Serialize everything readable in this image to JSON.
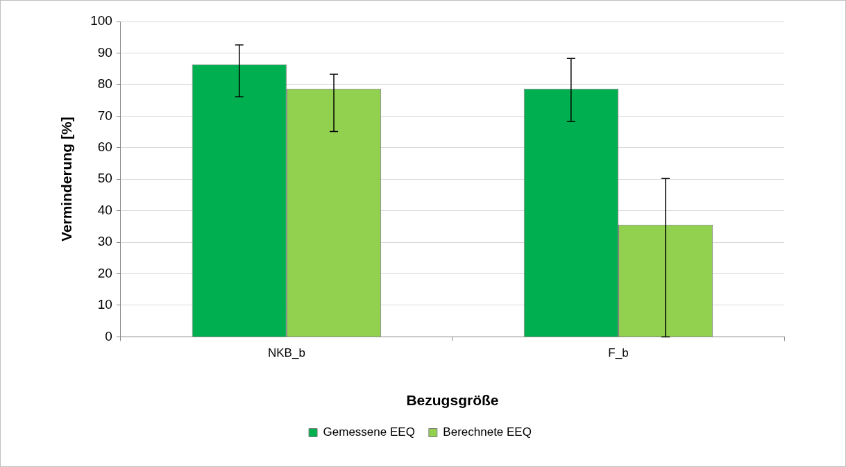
{
  "chart_data": {
    "type": "bar",
    "categories": [
      "NKB_b",
      "F_b"
    ],
    "series": [
      {
        "name": "Gemessene EEQ",
        "color": "#00b050",
        "values": [
          86.4,
          78.7
        ],
        "errors": [
          [
            76.1,
            92.6
          ],
          [
            68.3,
            88.3
          ]
        ]
      },
      {
        "name": "Berechnete EEQ",
        "color": "#92d050",
        "values": [
          78.7,
          35.6
        ],
        "errors": [
          [
            65.1,
            83.3
          ],
          [
            0,
            50.2
          ]
        ]
      }
    ],
    "xlabel": "Bezugsgröße",
    "ylabel": "Verminderung [%]",
    "ylim": [
      0,
      100
    ],
    "yticks": [
      0,
      10,
      20,
      30,
      40,
      50,
      60,
      70,
      80,
      90,
      100
    ],
    "grid": "y",
    "legend": "bottom"
  }
}
